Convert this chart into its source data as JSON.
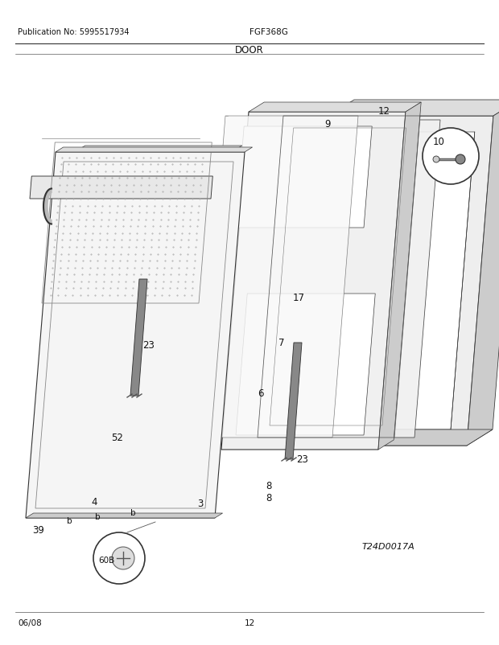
{
  "title": "DOOR",
  "pub_no": "Publication No: 5995517934",
  "model": "FGF368G",
  "diagram_id": "T24D0017A",
  "date": "06/08",
  "page": "12",
  "bg_color": "#ffffff",
  "fig_width": 6.2,
  "fig_height": 8.03,
  "dpi": 100
}
